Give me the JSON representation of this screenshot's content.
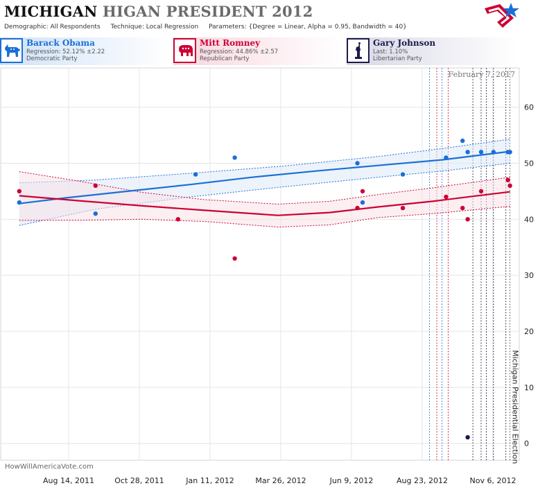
{
  "header": {
    "state": "MICHIGAN",
    "title_rest": "HIGAN PRESIDENT 2012",
    "demographic_label": "Demographic:",
    "demographic": "All Respondents",
    "technique_label": "Technique:",
    "technique": "Local Regression",
    "parameters_label": "Parameters:",
    "parameters": "{Degree = Linear, Alpha = 0.95, Bandwidth = 40}"
  },
  "candidates": [
    {
      "name": "Barack Obama",
      "line": "Regression: 52.12% ±2.22",
      "party": "Democratic Party",
      "color": "#1a6fd6"
    },
    {
      "name": "Mitt Romney",
      "line": "Regression: 44.86% ±2.57",
      "party": "Republican Party",
      "color": "#cc0033"
    },
    {
      "name": "Gary Johnson",
      "line": "Last: 1.10%",
      "party": "Libertarian Party",
      "color": "#1a1a4a"
    }
  ],
  "footer": {
    "credit": "HowWillAmericaVote.com",
    "date": "February 7, 2017"
  },
  "chart_data": {
    "type": "scatter",
    "x_tick_labels": [
      "Aug 14, 2011",
      "Oct 28, 2011",
      "Jan 11, 2012",
      "Mar 26, 2012",
      "Jun 9, 2012",
      "Aug 23, 2012",
      "Nov 6, 2012"
    ],
    "x_range": [
      "2011-07-01",
      "2012-11-15"
    ],
    "y_ticks": [
      0,
      10,
      20,
      30,
      40,
      50,
      60
    ],
    "y_range": [
      -3,
      67
    ],
    "grid": true,
    "annotation": "Michigan Presidential Election",
    "election_date": "2012-11-06",
    "vertical_markers": [
      {
        "date": "2012-08-20",
        "color": "#1a6fd6"
      },
      {
        "date": "2012-08-27",
        "color": "#cc0033"
      },
      {
        "date": "2012-09-01",
        "color": "#1a6fd6"
      },
      {
        "date": "2012-09-07",
        "color": "#cc0033"
      },
      {
        "date": "2012-10-01",
        "color": "#1a1a4a"
      },
      {
        "date": "2012-10-09",
        "color": "#1a1a4a"
      },
      {
        "date": "2012-10-14",
        "color": "#1a1a4a"
      },
      {
        "date": "2012-10-21",
        "color": "#1a1a4a"
      },
      {
        "date": "2012-11-02",
        "color": "#1a1a4a"
      }
    ],
    "series": [
      {
        "name": "Barack Obama",
        "color": "#1a6fd6",
        "band_fill": "#dce9f7",
        "points": [
          {
            "x": "2011-07-19",
            "y": 43
          },
          {
            "x": "2011-10-01",
            "y": 41
          },
          {
            "x": "2012-01-06",
            "y": 48
          },
          {
            "x": "2012-02-13",
            "y": 51
          },
          {
            "x": "2012-06-11",
            "y": 50
          },
          {
            "x": "2012-06-16",
            "y": 43
          },
          {
            "x": "2012-07-25",
            "y": 48
          },
          {
            "x": "2012-09-05",
            "y": 51
          },
          {
            "x": "2012-09-21",
            "y": 54
          },
          {
            "x": "2012-09-26",
            "y": 52
          },
          {
            "x": "2012-10-09",
            "y": 52
          },
          {
            "x": "2012-10-21",
            "y": 52
          },
          {
            "x": "2012-11-04",
            "y": 52
          },
          {
            "x": "2012-11-06",
            "y": 52
          }
        ],
        "trend": [
          {
            "x": "2011-07-19",
            "y": 42.8
          },
          {
            "x": "2011-09-01",
            "y": 43.8
          },
          {
            "x": "2011-11-01",
            "y": 45.0
          },
          {
            "x": "2012-01-01",
            "y": 46.2
          },
          {
            "x": "2012-03-01",
            "y": 47.5
          },
          {
            "x": "2012-05-01",
            "y": 48.6
          },
          {
            "x": "2012-07-01",
            "y": 49.6
          },
          {
            "x": "2012-09-01",
            "y": 50.6
          },
          {
            "x": "2012-10-15",
            "y": 51.6
          },
          {
            "x": "2012-11-06",
            "y": 52.1
          }
        ],
        "upper": [
          {
            "x": "2011-07-19",
            "y": 46.5
          },
          {
            "x": "2011-10-01",
            "y": 47.0
          },
          {
            "x": "2012-01-01",
            "y": 48.2
          },
          {
            "x": "2012-04-01",
            "y": 49.5
          },
          {
            "x": "2012-07-01",
            "y": 51.2
          },
          {
            "x": "2012-09-01",
            "y": 52.6
          },
          {
            "x": "2012-11-06",
            "y": 54.3
          }
        ],
        "lower": [
          {
            "x": "2011-07-19",
            "y": 38.9
          },
          {
            "x": "2011-10-01",
            "y": 41.8
          },
          {
            "x": "2012-01-01",
            "y": 44.0
          },
          {
            "x": "2012-04-01",
            "y": 45.8
          },
          {
            "x": "2012-07-01",
            "y": 47.5
          },
          {
            "x": "2012-09-01",
            "y": 48.6
          },
          {
            "x": "2012-11-06",
            "y": 50.0
          }
        ]
      },
      {
        "name": "Mitt Romney",
        "color": "#cc0033",
        "band_fill": "#f7e1e8",
        "points": [
          {
            "x": "2011-07-19",
            "y": 45
          },
          {
            "x": "2011-10-01",
            "y": 46
          },
          {
            "x": "2011-12-20",
            "y": 40
          },
          {
            "x": "2012-02-13",
            "y": 33
          },
          {
            "x": "2012-06-11",
            "y": 42
          },
          {
            "x": "2012-06-16",
            "y": 45
          },
          {
            "x": "2012-07-25",
            "y": 42
          },
          {
            "x": "2012-09-05",
            "y": 44
          },
          {
            "x": "2012-09-21",
            "y": 42
          },
          {
            "x": "2012-09-26",
            "y": 40
          },
          {
            "x": "2012-10-09",
            "y": 45
          },
          {
            "x": "2012-11-04",
            "y": 47
          },
          {
            "x": "2012-11-06",
            "y": 46
          }
        ],
        "trend": [
          {
            "x": "2011-07-19",
            "y": 44.2
          },
          {
            "x": "2011-09-15",
            "y": 43.3
          },
          {
            "x": "2011-11-15",
            "y": 42.4
          },
          {
            "x": "2012-01-15",
            "y": 41.6
          },
          {
            "x": "2012-03-26",
            "y": 40.7
          },
          {
            "x": "2012-05-15",
            "y": 41.2
          },
          {
            "x": "2012-07-01",
            "y": 42.2
          },
          {
            "x": "2012-08-23",
            "y": 43.2
          },
          {
            "x": "2012-10-01",
            "y": 44.1
          },
          {
            "x": "2012-11-06",
            "y": 44.9
          }
        ],
        "upper": [
          {
            "x": "2011-07-19",
            "y": 48.5
          },
          {
            "x": "2011-09-15",
            "y": 46.8
          },
          {
            "x": "2011-11-15",
            "y": 44.8
          },
          {
            "x": "2012-01-15",
            "y": 43.5
          },
          {
            "x": "2012-03-26",
            "y": 42.7
          },
          {
            "x": "2012-05-15",
            "y": 43.2
          },
          {
            "x": "2012-07-01",
            "y": 44.4
          },
          {
            "x": "2012-08-23",
            "y": 45.6
          },
          {
            "x": "2012-11-06",
            "y": 47.5
          }
        ],
        "lower": [
          {
            "x": "2011-07-19",
            "y": 39.8
          },
          {
            "x": "2011-09-15",
            "y": 39.8
          },
          {
            "x": "2011-11-15",
            "y": 40.0
          },
          {
            "x": "2012-01-15",
            "y": 39.6
          },
          {
            "x": "2012-03-26",
            "y": 38.6
          },
          {
            "x": "2012-05-15",
            "y": 39.0
          },
          {
            "x": "2012-07-01",
            "y": 40.3
          },
          {
            "x": "2012-08-23",
            "y": 41.0
          },
          {
            "x": "2012-11-06",
            "y": 42.3
          }
        ]
      },
      {
        "name": "Gary Johnson",
        "color": "#1a1a4a",
        "points": [
          {
            "x": "2012-09-26",
            "y": 1.1
          }
        ]
      }
    ]
  }
}
